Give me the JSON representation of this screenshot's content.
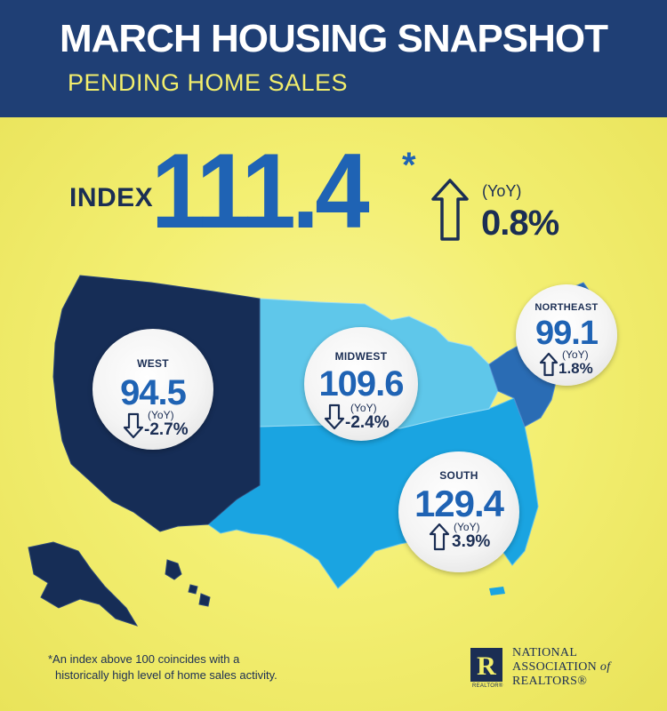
{
  "header": {
    "title": "MARCH HOUSING SNAPSHOT",
    "subtitle": "PENDING HOME SALES"
  },
  "index": {
    "label": "INDEX",
    "value": "111.4",
    "footnote_marker": "*",
    "yoy_label": "(YoY)",
    "yoy_change": "0.8%",
    "direction": "up"
  },
  "regions": {
    "west": {
      "name": "WEST",
      "value": "94.5",
      "yoy_label": "(YoY)",
      "yoy_change": "-2.7%",
      "direction": "down"
    },
    "midwest": {
      "name": "MIDWEST",
      "value": "109.6",
      "yoy_label": "(YoY)",
      "yoy_change": "-2.4%",
      "direction": "down"
    },
    "northeast": {
      "name": "NORTHEAST",
      "value": "99.1",
      "yoy_label": "(YoY)",
      "yoy_change": "1.8%",
      "direction": "up"
    },
    "south": {
      "name": "SOUTH",
      "value": "129.4",
      "yoy_label": "(YoY)",
      "yoy_change": "3.9%",
      "direction": "up"
    }
  },
  "footnote": {
    "line1": "*An index above 100 coincides with a",
    "line2": "historically high level of home sales activity."
  },
  "brand": {
    "line1": "NATIONAL",
    "line2": "ASSOCIATION",
    "line2_suffix": "of",
    "line3": "REALTORS®",
    "logo_letter": "R",
    "logo_caption": "REALTOR®"
  },
  "colors": {
    "header_bg": "#1f3f75",
    "background": "#f2ee6c",
    "accent_blue": "#1f63b4",
    "west": "#162d56",
    "midwest": "#5fc7ea",
    "northeast": "#2a6cb4",
    "south": "#1aa4e1"
  },
  "icons": {
    "up_arrow": "arrow-up-outline-icon",
    "down_arrow": "arrow-down-outline-icon"
  }
}
